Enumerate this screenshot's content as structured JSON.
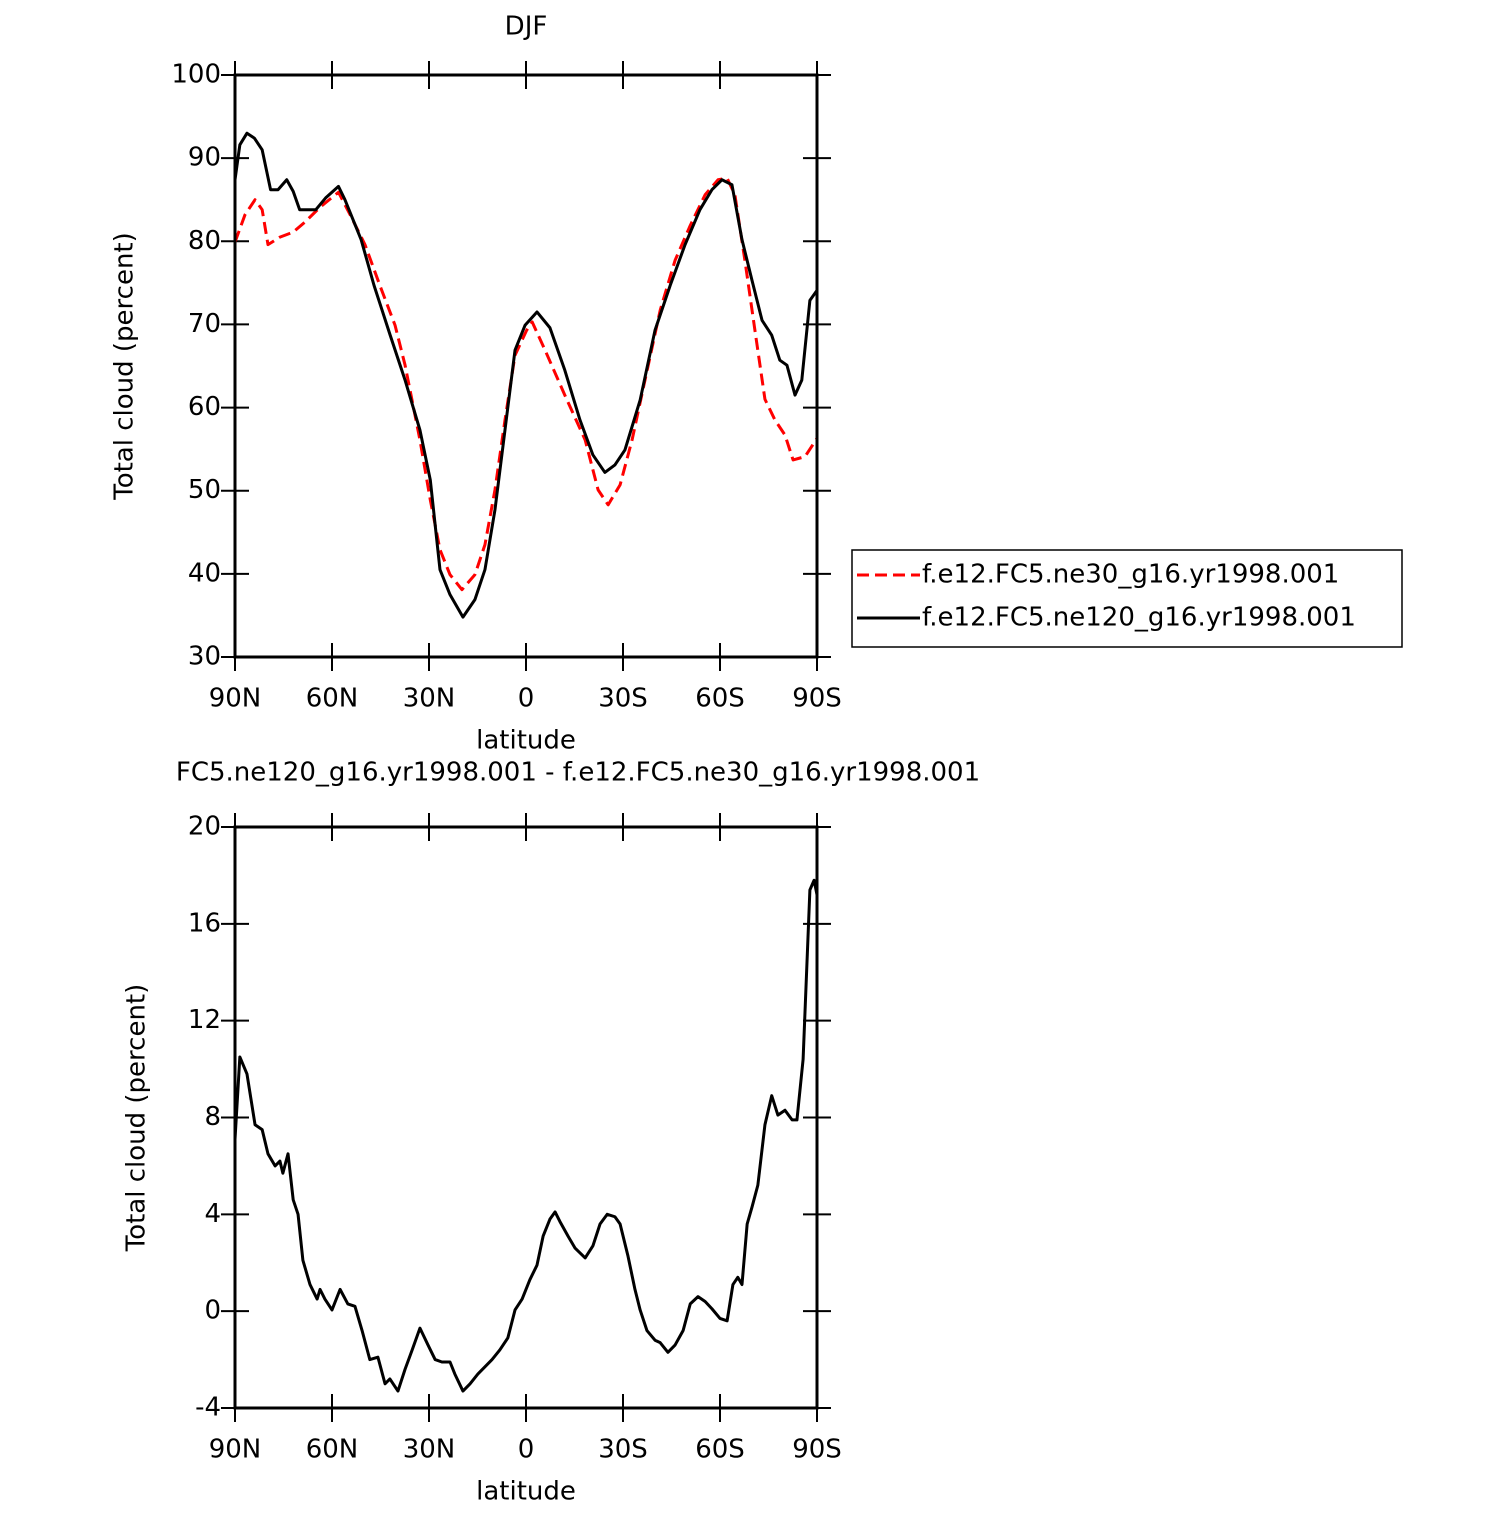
{
  "chart_data": [
    {
      "type": "line",
      "title": "DJF",
      "xlabel": "latitude",
      "ylabel": "Total cloud (percent)",
      "xlim": [
        90,
        -90
      ],
      "xticks": [
        {
          "value": 90,
          "label": "90N"
        },
        {
          "value": 60,
          "label": "60N"
        },
        {
          "value": 30,
          "label": "30N"
        },
        0,
        {
          "value": -30,
          "label": "30S"
        },
        {
          "value": -60,
          "label": "60S"
        },
        {
          "value": -90,
          "label": "90S"
        }
      ],
      "ylim": [
        30,
        100
      ],
      "yticks": [
        30,
        40,
        50,
        60,
        70,
        80,
        90,
        100
      ],
      "legend": "right",
      "series": [
        {
          "name": "f.e12.FC5.ne30_g16.yr1998.001",
          "color": "#ff0000",
          "linestyle": "dashed",
          "x": [
            90,
            86.9,
            83.8,
            81.6,
            79.8,
            76.1,
            72,
            68.4,
            63.7,
            58,
            54.4,
            49.8,
            45.2,
            40.5,
            37.4,
            32.8,
            29.6,
            26.6,
            23.5,
            19.8,
            15.8,
            12.7,
            9.6,
            6.5,
            3.4,
            -0.2,
            -1.9,
            -5.9,
            -12,
            -18.3,
            -22.3,
            -25.4,
            -29.1,
            -32.8,
            -36.8,
            -41.5,
            -46.1,
            -50.8,
            -55.4,
            -59.4,
            -62.2,
            -64.6,
            -67.7,
            -70.8,
            -73.9,
            -77,
            -80.1,
            -82.6,
            -86.3,
            -90
          ],
          "values": [
            79.9,
            83.2,
            85,
            83.8,
            79.6,
            80.5,
            81.1,
            82.3,
            84.1,
            85.9,
            83.2,
            79.6,
            74.7,
            69.9,
            65.1,
            56.1,
            48.9,
            42.9,
            39.9,
            38.1,
            39.9,
            43.5,
            50.1,
            58.5,
            66.3,
            69.3,
            70.3,
            66.9,
            61.5,
            56.1,
            50.1,
            48.3,
            50.7,
            56.1,
            63.3,
            71.7,
            77.7,
            81.9,
            85.6,
            87.4,
            87.6,
            85.6,
            77.7,
            69.3,
            61,
            58.5,
            56.7,
            53.7,
            54.1,
            56.3
          ]
        },
        {
          "name": "f.e12.FC5.ne120_g16.yr1998.001",
          "color": "#000000",
          "linestyle": "solid",
          "x": [
            90,
            88.5,
            86.3,
            84,
            81.6,
            79,
            76.7,
            74,
            72,
            70,
            65,
            62,
            58,
            56,
            51,
            47,
            42,
            37.4,
            32.8,
            29.6,
            26.6,
            23.5,
            19.5,
            15.8,
            12.7,
            9.6,
            6.5,
            3.4,
            0.3,
            -3.4,
            -7.4,
            -12,
            -16.7,
            -20.7,
            -24.4,
            -27.5,
            -30.6,
            -35.3,
            -39.9,
            -44.6,
            -49.2,
            -53.8,
            -57.5,
            -60.6,
            -63.7,
            -66.8,
            -69.9,
            -73,
            -76,
            -78.5,
            -80.7,
            -83.2,
            -85.3,
            -87.8,
            -90
          ],
          "values": [
            87.4,
            91.6,
            93,
            92.4,
            91,
            86.2,
            86.2,
            87.4,
            86,
            83.8,
            83.8,
            85.2,
            86.6,
            85,
            80.2,
            74.7,
            68.7,
            63.3,
            57.3,
            51.3,
            40.5,
            37.5,
            34.8,
            36.9,
            40.5,
            47.7,
            57.3,
            66.9,
            69.9,
            71.5,
            69.6,
            64.5,
            58.5,
            54.3,
            52.2,
            53.1,
            54.9,
            60.9,
            69.3,
            74.7,
            79.6,
            83.8,
            86.2,
            87.4,
            86.8,
            80.2,
            75.3,
            70.5,
            68.7,
            65.7,
            65.1,
            61.5,
            63.3,
            72.9,
            74.1
          ]
        }
      ]
    },
    {
      "type": "line",
      "title": "FC5.ne120_g16.yr1998.001 - f.e12.FC5.ne30_g16.yr1998.001",
      "xlabel": "latitude",
      "ylabel": "Total cloud (percent)",
      "xlim": [
        90,
        -90
      ],
      "xticks": [
        {
          "value": 90,
          "label": "90N"
        },
        {
          "value": 60,
          "label": "60N"
        },
        {
          "value": 30,
          "label": "30N"
        },
        0,
        {
          "value": -30,
          "label": "30S"
        },
        {
          "value": -60,
          "label": "60S"
        },
        {
          "value": -90,
          "label": "90S"
        }
      ],
      "ylim": [
        -4,
        20
      ],
      "yticks": [
        -4,
        0,
        4,
        8,
        12,
        16,
        20
      ],
      "series": [
        {
          "color": "#000000",
          "linestyle": "solid",
          "x": [
            90,
            88.5,
            86.3,
            83.8,
            81.6,
            79.8,
            77.6,
            76.1,
            75.2,
            73.6,
            72,
            70.5,
            69,
            66.8,
            64.6,
            63.7,
            62.2,
            60,
            57.5,
            55.1,
            52.9,
            50.7,
            48.3,
            45.8,
            43.6,
            42.1,
            39.6,
            37.4,
            35.2,
            32.8,
            30.3,
            28.1,
            26,
            23.5,
            22,
            19.5,
            17.3,
            14.9,
            12.7,
            10.5,
            8.1,
            5.6,
            3.4,
            1.2,
            -1.2,
            -3.4,
            -5.3,
            -7.4,
            -9,
            -10.5,
            -13,
            -15.2,
            -18.3,
            -20.7,
            -22.9,
            -25.1,
            -27.5,
            -29.1,
            -31.5,
            -33.7,
            -35.3,
            -37.4,
            -39.9,
            -41.5,
            -43.9,
            -46.1,
            -48.6,
            -50.8,
            -53.2,
            -55.4,
            -57.5,
            -60,
            -62.2,
            -64,
            -65.5,
            -66.8,
            -68.4,
            -69.9,
            -71.7,
            -73.9,
            -76,
            -77.9,
            -80.1,
            -82.3,
            -83.8,
            -85.7,
            -87.8,
            -89.1,
            -90
          ],
          "values": [
            7.1,
            10.5,
            9.8,
            7.7,
            7.5,
            6.5,
            6.0,
            6.2,
            5.7,
            6.5,
            4.6,
            4.0,
            2.1,
            1.1,
            0.5,
            0.9,
            0.5,
            0.05,
            0.9,
            0.3,
            0.2,
            -0.8,
            -2.0,
            -1.9,
            -3.0,
            -2.8,
            -3.3,
            -2.4,
            -1.6,
            -0.7,
            -1.4,
            -2.0,
            -2.1,
            -2.1,
            -2.6,
            -3.3,
            -3.0,
            -2.6,
            -2.3,
            -2.0,
            -1.6,
            -1.1,
            0.05,
            0.5,
            1.3,
            1.9,
            3.1,
            3.8,
            4.1,
            3.7,
            3.1,
            2.6,
            2.2,
            2.7,
            3.6,
            4.0,
            3.9,
            3.6,
            2.3,
            0.9,
            0.05,
            -0.8,
            -1.2,
            -1.3,
            -1.7,
            -1.4,
            -0.8,
            0.3,
            0.6,
            0.4,
            0.1,
            -0.3,
            -0.4,
            1.1,
            1.4,
            1.1,
            3.6,
            4.3,
            5.2,
            7.7,
            8.9,
            8.1,
            8.3,
            7.9,
            7.9,
            10.4,
            17.4,
            17.8,
            17.2
          ]
        }
      ]
    }
  ]
}
